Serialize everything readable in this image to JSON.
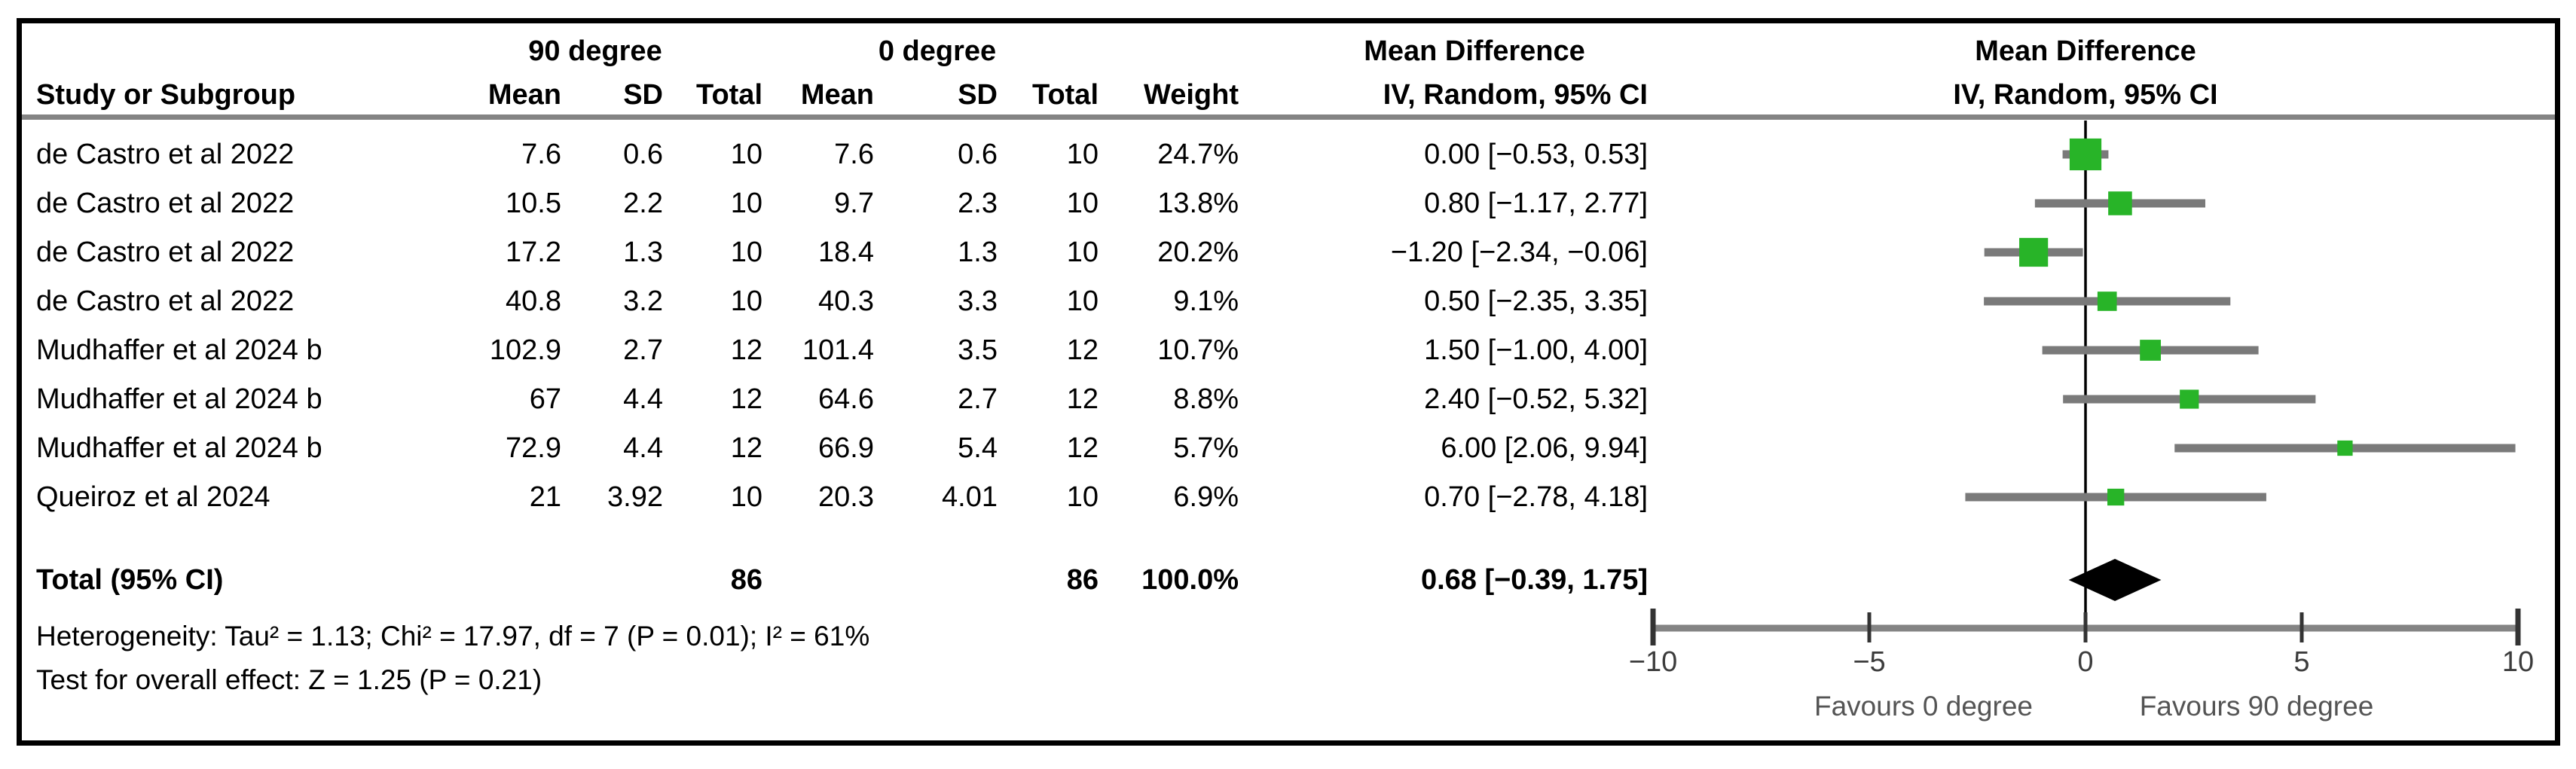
{
  "table": {
    "group1_header": "90 degree",
    "group2_header": "0 degree",
    "effect_header_text_col": "Mean Difference",
    "effect_header_plot_col": "Mean Difference",
    "effect_subheader_text_col": "IV, Random, 95% CI",
    "effect_subheader_plot_col": "IV, Random, 95% CI",
    "col_headers": {
      "study": "Study or Subgroup",
      "mean1": "Mean",
      "sd1": "SD",
      "total1": "Total",
      "mean2": "Mean",
      "sd2": "SD",
      "total2": "Total",
      "weight": "Weight"
    },
    "rows": [
      {
        "name": "de Castro et al 2022",
        "mean1": "7.6",
        "sd1": "0.6",
        "total1": "10",
        "mean2": "7.6",
        "sd2": "0.6",
        "total2": "10",
        "weight": "24.7%",
        "ci_text": "0.00 [−0.53, 0.53]"
      },
      {
        "name": "de Castro et al 2022",
        "mean1": "10.5",
        "sd1": "2.2",
        "total1": "10",
        "mean2": "9.7",
        "sd2": "2.3",
        "total2": "10",
        "weight": "13.8%",
        "ci_text": "0.80 [−1.17, 2.77]"
      },
      {
        "name": "de Castro et al 2022",
        "mean1": "17.2",
        "sd1": "1.3",
        "total1": "10",
        "mean2": "18.4",
        "sd2": "1.3",
        "total2": "10",
        "weight": "20.2%",
        "ci_text": "−1.20 [−2.34, −0.06]"
      },
      {
        "name": "de Castro et al 2022",
        "mean1": "40.8",
        "sd1": "3.2",
        "total1": "10",
        "mean2": "40.3",
        "sd2": "3.3",
        "total2": "10",
        "weight": "9.1%",
        "ci_text": "0.50 [−2.35, 3.35]"
      },
      {
        "name": "Mudhaffer et al 2024 b",
        "mean1": "102.9",
        "sd1": "2.7",
        "total1": "12",
        "mean2": "101.4",
        "sd2": "3.5",
        "total2": "12",
        "weight": "10.7%",
        "ci_text": "1.50 [−1.00, 4.00]"
      },
      {
        "name": "Mudhaffer et al 2024 b",
        "mean1": "67",
        "sd1": "4.4",
        "total1": "12",
        "mean2": "64.6",
        "sd2": "2.7",
        "total2": "12",
        "weight": "8.8%",
        "ci_text": "2.40 [−0.52, 5.32]"
      },
      {
        "name": "Mudhaffer et al 2024 b",
        "mean1": "72.9",
        "sd1": "4.4",
        "total1": "12",
        "mean2": "66.9",
        "sd2": "5.4",
        "total2": "12",
        "weight": "5.7%",
        "ci_text": "6.00 [2.06, 9.94]"
      },
      {
        "name": "Queiroz et al 2024",
        "mean1": "21",
        "sd1": "3.92",
        "total1": "10",
        "mean2": "20.3",
        "sd2": "4.01",
        "total2": "10",
        "weight": "6.9%",
        "ci_text": "0.70 [−2.78, 4.18]"
      }
    ],
    "total": {
      "label": "Total (95% CI)",
      "total1": "86",
      "total2": "86",
      "weight": "100.0%",
      "ci_text": "0.68 [−0.39, 1.75]"
    },
    "footnotes": {
      "heterogeneity": "Heterogeneity: Tau² = 1.13; Chi² = 17.97, df = 7 (P = 0.01); I² = 61%",
      "overall_effect": "Test for overall effect: Z = 1.25 (P = 0.21)"
    }
  },
  "chart_data": {
    "type": "forest",
    "title": "Mean Difference — IV, Random, 95% CI",
    "xlim": [
      -10,
      10
    ],
    "x_ticks": [
      -10,
      -5,
      0,
      5,
      10
    ],
    "x_tick_labels": [
      "−10",
      "−5",
      "0",
      "5",
      "10"
    ],
    "favours_left": "Favours 0 degree",
    "favours_right": "Favours 90 degree",
    "studies": [
      {
        "name": "de Castro et al 2022",
        "md": 0.0,
        "lo": -0.53,
        "hi": 0.53,
        "weight_pct": 24.7
      },
      {
        "name": "de Castro et al 2022",
        "md": 0.8,
        "lo": -1.17,
        "hi": 2.77,
        "weight_pct": 13.8
      },
      {
        "name": "de Castro et al 2022",
        "md": -1.2,
        "lo": -2.34,
        "hi": -0.06,
        "weight_pct": 20.2
      },
      {
        "name": "de Castro et al 2022",
        "md": 0.5,
        "lo": -2.35,
        "hi": 3.35,
        "weight_pct": 9.1
      },
      {
        "name": "Mudhaffer et al 2024 b",
        "md": 1.5,
        "lo": -1.0,
        "hi": 4.0,
        "weight_pct": 10.7
      },
      {
        "name": "Mudhaffer et al 2024 b",
        "md": 2.4,
        "lo": -0.52,
        "hi": 5.32,
        "weight_pct": 8.8
      },
      {
        "name": "Mudhaffer et al 2024 b",
        "md": 6.0,
        "lo": 2.06,
        "hi": 9.94,
        "weight_pct": 5.7
      },
      {
        "name": "Queiroz et al 2024",
        "md": 0.7,
        "lo": -2.78,
        "hi": 4.18,
        "weight_pct": 6.9
      }
    ],
    "total": {
      "md": 0.68,
      "lo": -0.39,
      "hi": 1.75,
      "weight_pct": 100.0
    }
  },
  "colors": {
    "square_green": "#28b428",
    "ci_bar_gray": "#7a7a7a",
    "axis_gray": "#848484",
    "diamond_black": "#000000",
    "zero_line_black": "#000000"
  }
}
